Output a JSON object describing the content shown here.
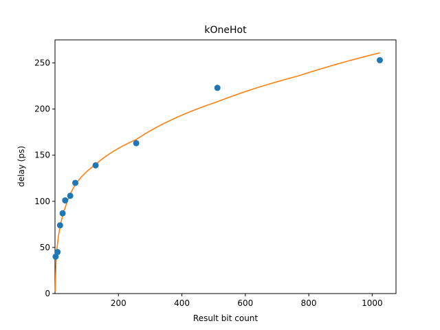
{
  "chart_data": {
    "type": "scatter",
    "title": "kOneHot",
    "xlabel": "Result bit count",
    "ylabel": "delay (ps)",
    "xlim": [
      0,
      1075
    ],
    "ylim": [
      0,
      275
    ],
    "xticks": [
      200,
      400,
      600,
      800,
      1000
    ],
    "xtick_labels": [
      "200",
      "400",
      "600",
      "800",
      "1000"
    ],
    "yticks": [
      0,
      50,
      100,
      150,
      200,
      250
    ],
    "ytick_labels": [
      "0",
      "50",
      "100",
      "150",
      "200",
      "250"
    ],
    "grid": false,
    "series": [
      {
        "kind": "scatter",
        "color": "#1f77b4",
        "x": [
          2,
          8,
          16,
          24,
          32,
          48,
          64,
          128,
          256,
          512,
          1024
        ],
        "y": [
          40,
          45,
          74,
          87,
          101,
          106,
          120,
          139,
          163,
          223,
          253
        ]
      },
      {
        "kind": "line",
        "color": "#ff7f0e",
        "x": [
          1,
          2,
          4,
          8,
          16,
          32,
          64,
          128,
          256,
          512,
          768,
          1024
        ],
        "y": [
          2,
          20,
          39,
          54,
          72,
          93,
          118,
          140,
          167,
          208,
          236,
          261
        ]
      }
    ]
  }
}
